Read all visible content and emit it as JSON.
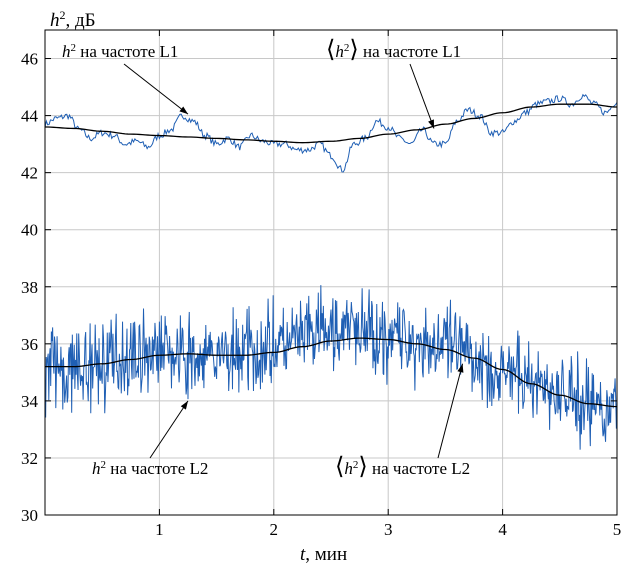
{
  "chart_data": {
    "type": "line",
    "ylabel_var": "h",
    "ylabel_sup": "2",
    "ylabel_unit": ", дБ",
    "xlabel_var": "t",
    "xlabel_unit": ", мин",
    "xlim": [
      0,
      5
    ],
    "ylim": [
      30,
      47
    ],
    "x_ticks": [
      1,
      2,
      3,
      4,
      5
    ],
    "y_ticks": [
      30,
      32,
      34,
      36,
      38,
      40,
      42,
      44,
      46
    ],
    "grid": true,
    "colors": {
      "raw": "#1f5fb4",
      "mean": "#000000",
      "axes": "#000000",
      "grid": "#c8c8c8"
    },
    "series": [
      {
        "name": "h² на частоте L1",
        "role": "raw",
        "noise_amp": 0.12,
        "x": [
          0,
          0.1,
          0.2,
          0.3,
          0.4,
          0.5,
          0.6,
          0.7,
          0.8,
          0.9,
          1.0,
          1.1,
          1.2,
          1.3,
          1.4,
          1.5,
          1.6,
          1.7,
          1.8,
          1.9,
          2.0,
          2.1,
          2.2,
          2.3,
          2.4,
          2.5,
          2.6,
          2.7,
          2.8,
          2.9,
          3.0,
          3.1,
          3.2,
          3.3,
          3.4,
          3.5,
          3.6,
          3.7,
          3.8,
          3.9,
          4.0,
          4.1,
          4.2,
          4.3,
          4.4,
          4.5,
          4.6,
          4.7,
          4.8,
          4.9,
          5.0
        ],
        "y": [
          43.7,
          43.9,
          44.0,
          43.5,
          43.2,
          43.4,
          43.3,
          43.0,
          43.1,
          42.9,
          43.3,
          43.5,
          44.0,
          43.8,
          43.3,
          43.0,
          43.2,
          42.9,
          43.3,
          43.1,
          43.0,
          43.0,
          42.8,
          42.8,
          43.0,
          42.6,
          42.1,
          43.0,
          43.2,
          43.8,
          43.6,
          43.2,
          43.0,
          43.5,
          43.0,
          43.0,
          43.8,
          44.2,
          44.0,
          43.4,
          43.4,
          43.8,
          44.1,
          44.4,
          44.5,
          44.6,
          44.4,
          44.7,
          44.4,
          44.1,
          44.5
        ]
      },
      {
        "name": "⟨h²⟩ на частоте L1",
        "role": "mean",
        "noise_amp": 0,
        "x": [
          0,
          0.25,
          0.5,
          0.75,
          1.0,
          1.25,
          1.5,
          1.75,
          2.0,
          2.25,
          2.5,
          2.75,
          3.0,
          3.25,
          3.5,
          3.75,
          4.0,
          4.25,
          4.5,
          4.75,
          5.0
        ],
        "y": [
          43.6,
          43.55,
          43.45,
          43.35,
          43.3,
          43.25,
          43.2,
          43.15,
          43.1,
          43.05,
          43.1,
          43.2,
          43.35,
          43.5,
          43.7,
          43.9,
          44.1,
          44.3,
          44.4,
          44.4,
          44.3
        ]
      },
      {
        "name": "h² на частоте L2",
        "role": "raw",
        "noise_amp": 1.35,
        "x": [
          0,
          0.25,
          0.5,
          0.75,
          1.0,
          1.25,
          1.5,
          1.75,
          2.0,
          2.25,
          2.5,
          2.75,
          3.0,
          3.25,
          3.5,
          3.75,
          4.0,
          4.25,
          4.5,
          4.75,
          5.0
        ],
        "y": [
          35.2,
          35.0,
          35.3,
          35.6,
          35.8,
          35.4,
          35.5,
          35.7,
          35.9,
          36.2,
          36.4,
          36.5,
          36.3,
          36.1,
          35.9,
          35.5,
          35.0,
          34.7,
          34.3,
          33.9,
          33.8
        ]
      },
      {
        "name": "⟨h²⟩ на частоте L2",
        "role": "mean",
        "noise_amp": 0,
        "x": [
          0,
          0.25,
          0.5,
          0.75,
          1.0,
          1.25,
          1.5,
          1.75,
          2.0,
          2.25,
          2.5,
          2.75,
          3.0,
          3.25,
          3.5,
          3.75,
          4.0,
          4.25,
          4.5,
          4.75,
          5.0
        ],
        "y": [
          35.2,
          35.2,
          35.3,
          35.45,
          35.6,
          35.65,
          35.6,
          35.6,
          35.7,
          35.9,
          36.1,
          36.2,
          36.15,
          36.0,
          35.8,
          35.5,
          35.1,
          34.6,
          34.2,
          33.9,
          33.8
        ]
      }
    ],
    "annotations": [
      {
        "var": "h",
        "sup": "2",
        "text": " на частоте L1",
        "bracketed": false,
        "series_index": 0,
        "arrow_to": [
          1.25,
          44.05
        ]
      },
      {
        "var": "h",
        "sup": "2",
        "text": " на частоте L1",
        "bracketed": true,
        "series_index": 1,
        "arrow_to": [
          3.4,
          43.55
        ]
      },
      {
        "var": "h",
        "sup": "2",
        "text": " на частоте L2",
        "bracketed": false,
        "series_index": 2,
        "arrow_to": [
          1.25,
          34.0
        ]
      },
      {
        "var": "h",
        "sup": "2",
        "text": " на частоте L2",
        "bracketed": true,
        "series_index": 3,
        "arrow_to": [
          3.65,
          35.3
        ]
      }
    ]
  }
}
